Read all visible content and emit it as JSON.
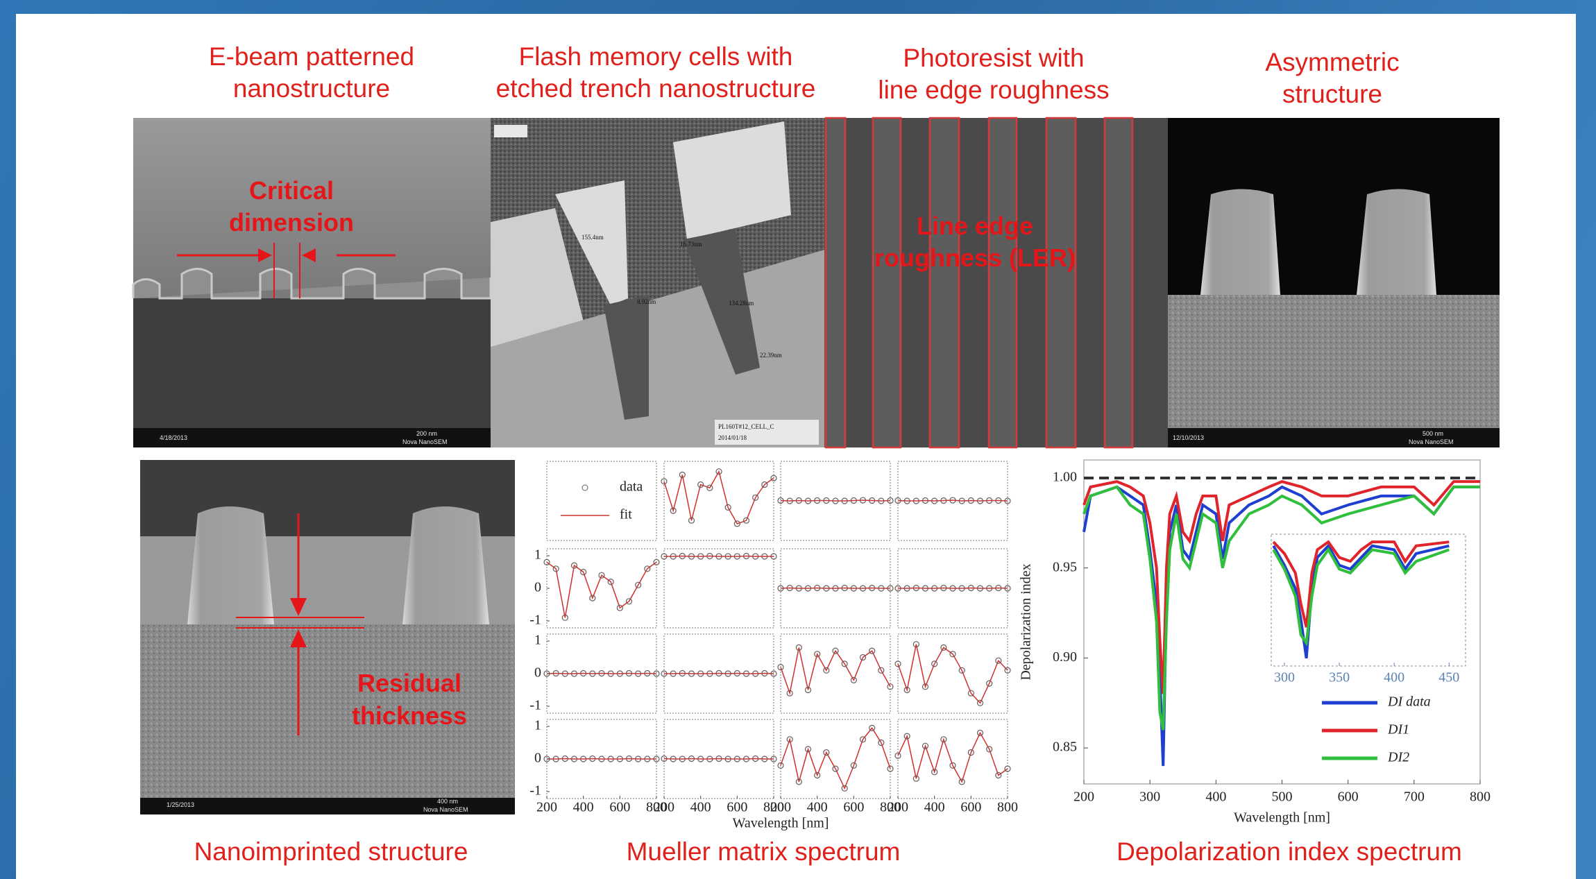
{
  "panels": [
    {
      "title": [
        "E-beam patterned",
        "nanostructure"
      ],
      "annotation": [
        "Critical",
        "dimension"
      ],
      "info": [
        "4/18/2013",
        "Nova NanoSEM",
        "200 nm"
      ]
    },
    {
      "title": [
        "Flash memory cells with",
        "etched trench nanostructure"
      ],
      "labels": [
        "155.4nm",
        "16.73nm",
        "8.92nm",
        "134.28nm",
        "22.39nm",
        "PL160T#12_CELL_C",
        "2014/01/18"
      ]
    },
    {
      "title": [
        "Photoresist with",
        "line edge roughness"
      ],
      "annotation": [
        "Line edge",
        "roughness (LER)"
      ]
    },
    {
      "title": [
        "Asymmetric",
        "structure"
      ],
      "info": [
        "12/10/2013",
        "Nova NanoSEM",
        "500 nm"
      ]
    },
    {
      "title": [
        "Nanoimprinted structure"
      ],
      "annotation": [
        "Residual",
        "thickness"
      ],
      "info": [
        "1/25/2013",
        "Nova NanoSEM",
        "400 nm"
      ]
    }
  ],
  "chart_data": [
    {
      "type": "matrix",
      "title": "Mueller matrix spectrum",
      "x_label": "Wavelength [nm]",
      "legend": [
        "data",
        "fit"
      ],
      "marker_color": "#6a5a5a",
      "color": "#d0312d",
      "x": [
        200,
        250,
        300,
        350,
        400,
        450,
        500,
        550,
        600,
        650,
        700,
        750,
        800
      ],
      "xlim": [
        200,
        800
      ],
      "xticks": [
        200,
        400,
        600,
        800
      ],
      "ylim": [
        -1,
        1
      ],
      "yticks": [
        -1,
        0,
        1
      ],
      "cells": [
        [
          null,
          [
            0.6,
            -0.3,
            0.8,
            -0.6,
            0.5,
            0.4,
            0.9,
            -0.2,
            -0.7,
            -0.6,
            0.1,
            0.5,
            0.7
          ],
          [
            0.01,
            0,
            0.01,
            0,
            0.01,
            0.01,
            0,
            0,
            0.01,
            0.02,
            0.01,
            0,
            0.01
          ],
          [
            0.01,
            0,
            0,
            0.01,
            0,
            0.01,
            0.02,
            0,
            0.01,
            0,
            0.01,
            0.01,
            0
          ]
        ],
        [
          [
            0.8,
            0.6,
            -0.9,
            0.7,
            0.5,
            -0.3,
            0.4,
            0.2,
            -0.6,
            -0.4,
            0.1,
            0.6,
            0.8
          ],
          [
            0.98,
            0.98,
            0.99,
            0.98,
            0.98,
            0.99,
            0.98,
            0.98,
            0.98,
            0.99,
            0.98,
            0.98,
            0.98
          ],
          [
            0,
            0.01,
            0,
            0,
            0.01,
            0,
            0,
            0.01,
            0,
            0,
            0.01,
            0,
            0
          ],
          [
            0,
            0,
            0.01,
            0,
            0,
            0.01,
            0,
            0,
            0.01,
            0,
            0,
            0.01,
            0
          ]
        ],
        [
          [
            0,
            0.01,
            0,
            0,
            0.01,
            0,
            0.01,
            0,
            0,
            0.01,
            0,
            0.01,
            0
          ],
          [
            0,
            0,
            0.01,
            0,
            0,
            0,
            0.01,
            0,
            0.01,
            0,
            0,
            0.01,
            0
          ],
          [
            0.2,
            -0.6,
            0.8,
            -0.5,
            0.6,
            0.1,
            0.7,
            0.3,
            -0.2,
            0.5,
            0.7,
            0.1,
            -0.4
          ],
          [
            0.3,
            -0.5,
            0.9,
            -0.4,
            0.3,
            0.8,
            0.6,
            0.1,
            -0.6,
            -0.9,
            -0.3,
            0.4,
            0.1
          ]
        ],
        [
          [
            0,
            0,
            0.01,
            0,
            0,
            0.01,
            0,
            0,
            0,
            0.01,
            0,
            0,
            0
          ],
          [
            0.01,
            0,
            0,
            0.01,
            0,
            0,
            0.01,
            0,
            0,
            0,
            0.01,
            0,
            0
          ],
          [
            -0.2,
            0.6,
            -0.7,
            0.3,
            -0.5,
            0.2,
            -0.3,
            -0.9,
            -0.2,
            0.6,
            0.95,
            0.5,
            -0.3
          ],
          [
            0.1,
            0.7,
            -0.6,
            0.4,
            -0.4,
            0.6,
            -0.2,
            -0.7,
            0.2,
            0.8,
            0.3,
            -0.5,
            -0.3
          ]
        ]
      ]
    },
    {
      "type": "line",
      "title": "Depolarization index spectrum",
      "x_label": "Wavelength [nm]",
      "y_label": "Depolarization index",
      "xlim": [
        200,
        800
      ],
      "xticks": [
        200,
        300,
        400,
        500,
        600,
        700,
        800
      ],
      "ylim": [
        0.83,
        1.01
      ],
      "yticks": [
        {
          "value": 1,
          "label": "1.00"
        },
        0.95,
        {
          "value": 0.9,
          "label": "0.90"
        },
        0.85
      ],
      "reference_line": 1,
      "legend": "lower right",
      "x": [
        200,
        210,
        250,
        270,
        290,
        300,
        310,
        315,
        320,
        325,
        330,
        340,
        350,
        360,
        370,
        380,
        400,
        410,
        420,
        450,
        480,
        500,
        530,
        560,
        600,
        650,
        700,
        730,
        760,
        800
      ],
      "series": [
        {
          "name": "DI data",
          "color": "#1f3fd0",
          "values": [
            0.97,
            0.99,
            0.995,
            0.99,
            0.985,
            0.96,
            0.93,
            0.89,
            0.84,
            0.93,
            0.97,
            0.985,
            0.96,
            0.955,
            0.97,
            0.985,
            0.98,
            0.955,
            0.975,
            0.985,
            0.99,
            0.995,
            0.99,
            0.98,
            0.985,
            0.99,
            0.99,
            0.98,
            0.995,
            0.995
          ]
        },
        {
          "name": "DI1",
          "color": "#e0242b",
          "values": [
            0.985,
            0.995,
            0.998,
            0.995,
            0.99,
            0.975,
            0.95,
            0.91,
            0.88,
            0.95,
            0.98,
            0.99,
            0.97,
            0.965,
            0.98,
            0.99,
            0.99,
            0.965,
            0.985,
            0.99,
            0.995,
            0.998,
            0.995,
            0.99,
            0.99,
            0.995,
            0.995,
            0.985,
            0.998,
            0.998
          ]
        },
        {
          "name": "DI2",
          "color": "#2fbf3c",
          "values": [
            0.98,
            0.99,
            0.995,
            0.985,
            0.98,
            0.955,
            0.92,
            0.87,
            0.86,
            0.92,
            0.96,
            0.98,
            0.955,
            0.95,
            0.965,
            0.98,
            0.975,
            0.95,
            0.965,
            0.98,
            0.985,
            0.99,
            0.985,
            0.975,
            0.98,
            0.985,
            0.99,
            0.98,
            0.995,
            0.995
          ]
        }
      ],
      "inset": {
        "xlim": [
          288,
          465
        ],
        "xticks": [
          300,
          350,
          400,
          450
        ],
        "ylim": [
          0.83,
          1.0
        ]
      }
    }
  ]
}
